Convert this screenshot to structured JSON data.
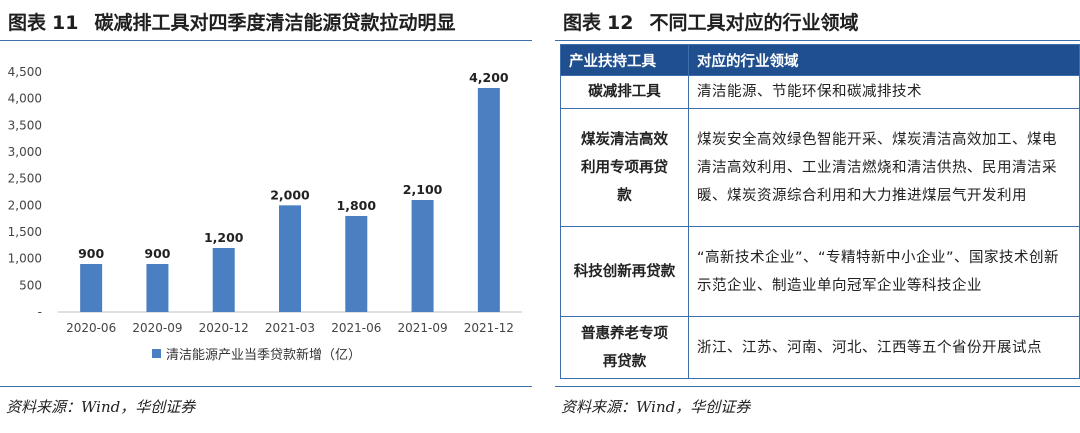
{
  "left": {
    "fig_label": "图表",
    "fig_num": "11",
    "title": "碳减排工具对四季度清洁能源贷款拉动明显",
    "source": "资料来源：Wind，华创证券"
  },
  "right": {
    "fig_label": "图表",
    "fig_num": "12",
    "title": "不同工具对应的行业领域",
    "source": "资料来源：Wind，华创证券",
    "table": {
      "headers": [
        "产业扶持工具",
        "对应的行业领域"
      ],
      "rows": [
        {
          "tool": "碳减排工具",
          "field": "清洁能源、节能环保和碳减排技术"
        },
        {
          "tool": "煤炭清洁高效利用专项再贷款",
          "field": "煤炭安全高效绿色智能开采、煤炭清洁高效加工、煤电清洁高效利用、工业清洁燃烧和清洁供热、民用清洁采暖、煤炭资源综合利用和大力推进煤层气开发利用"
        },
        {
          "tool": "科技创新再贷款",
          "field": "“高新技术企业”、“专精特新中小企业”、国家技术创新示范企业、制造业单向冠军企业等科技企业"
        },
        {
          "tool": "普惠养老专项再贷款",
          "field": "浙江、江苏、河南、河北、江西等五个省份开展试点"
        }
      ]
    }
  },
  "chart_data": {
    "type": "bar",
    "title": "碳减排工具对四季度清洁能源贷款拉动明显",
    "categories": [
      "2020-06",
      "2020-09",
      "2020-12",
      "2021-03",
      "2021-06",
      "2021-09",
      "2021-12"
    ],
    "series": [
      {
        "name": "清洁能源产业当季贷款新增（亿）",
        "values": [
          900,
          900,
          1200,
          2000,
          1800,
          2100,
          4200
        ]
      }
    ],
    "data_labels": [
      "900",
      "900",
      "1,200",
      "2,000",
      "1,800",
      "2,100",
      "4,200"
    ],
    "y_ticks": [
      "-",
      "500",
      "1,000",
      "1,500",
      "2,000",
      "2,500",
      "3,000",
      "3,500",
      "4,000",
      "4,500"
    ],
    "ylim": [
      0,
      4500
    ],
    "grid": false,
    "legend_position": "bottom",
    "bar_color": "#4a7fc1"
  }
}
